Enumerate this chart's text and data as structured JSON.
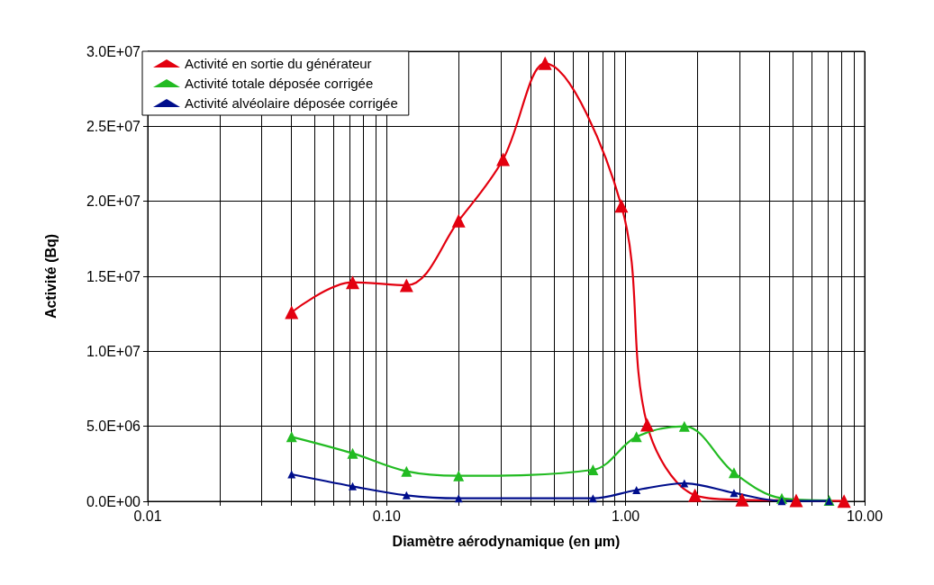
{
  "chart_data": {
    "type": "line",
    "xlabel": "Diamètre aérodynamique (en µm)",
    "ylabel": "Activité (Bq)",
    "log": "x",
    "grid": true,
    "legend": "top left",
    "marker": "triangle",
    "line_style": "solid",
    "xlim": [
      0.01,
      10
    ],
    "xticks": [
      {
        "value": 0.01,
        "label": "0.01"
      },
      {
        "value": 0.02,
        "label": null
      },
      {
        "value": 0.03,
        "label": null
      },
      {
        "value": 0.04,
        "label": null
      },
      {
        "value": 0.05,
        "label": null
      },
      {
        "value": 0.06,
        "label": null
      },
      {
        "value": 0.07,
        "label": null
      },
      {
        "value": 0.08,
        "label": null
      },
      {
        "value": 0.09,
        "label": null
      },
      {
        "value": 0.1,
        "label": "0.10"
      },
      {
        "value": 0.2,
        "label": null
      },
      {
        "value": 0.3,
        "label": null
      },
      {
        "value": 0.4,
        "label": null
      },
      {
        "value": 0.5,
        "label": null
      },
      {
        "value": 0.6,
        "label": null
      },
      {
        "value": 0.7,
        "label": null
      },
      {
        "value": 0.8,
        "label": null
      },
      {
        "value": 0.9,
        "label": null
      },
      {
        "value": 1,
        "label": "1.00"
      },
      {
        "value": 2,
        "label": null
      },
      {
        "value": 3,
        "label": null
      },
      {
        "value": 4,
        "label": null
      },
      {
        "value": 5,
        "label": null
      },
      {
        "value": 6,
        "label": null
      },
      {
        "value": 7,
        "label": null
      },
      {
        "value": 8,
        "label": null
      },
      {
        "value": 9,
        "label": null
      },
      {
        "value": 10,
        "label": "10.00"
      }
    ],
    "ylim": [
      0,
      30000000
    ],
    "yticks": [
      {
        "value": 0,
        "label": "0.0E+00"
      },
      {
        "value": 5000000,
        "label": "5.0E+06"
      },
      {
        "value": 10000000,
        "label": "1.0E+07"
      },
      {
        "value": 15000000,
        "label": "1.5E+07"
      },
      {
        "value": 20000000,
        "label": "2.0E+07"
      },
      {
        "value": 25000000,
        "label": "2.5E+07"
      },
      {
        "value": 30000000,
        "label": "3.0E+07"
      }
    ],
    "series": [
      {
        "name": "Activité en sortie du générateur",
        "color": "#e3000f",
        "x": [
          0.04,
          0.072,
          0.121,
          0.2,
          0.307,
          0.46,
          0.96,
          1.23,
          1.95,
          3.07,
          5.17,
          8.2
        ],
        "values": [
          12600000,
          14600000,
          14400000,
          18700000,
          22800000,
          29200000,
          19700000,
          5100000,
          400000,
          100000,
          60000,
          20000
        ]
      },
      {
        "name": "Activité totale déposée corrigée",
        "color": "#22bb22",
        "x": [
          0.04,
          0.072,
          0.121,
          0.2,
          0.73,
          1.11,
          1.76,
          2.84,
          4.5,
          7.1
        ],
        "values": [
          4300000,
          3200000,
          2000000,
          1700000,
          2100000,
          4300000,
          5000000,
          1900000,
          200000,
          60000
        ]
      },
      {
        "name": "Activité alvéolaire déposée corrigée",
        "color": "#000e8c",
        "x": [
          0.04,
          0.072,
          0.121,
          0.2,
          0.73,
          1.11,
          1.76,
          2.84,
          4.5,
          7.1
        ],
        "values": [
          1800000,
          1000000,
          400000,
          200000,
          200000,
          750000,
          1200000,
          560000,
          20000,
          20000
        ]
      }
    ]
  }
}
